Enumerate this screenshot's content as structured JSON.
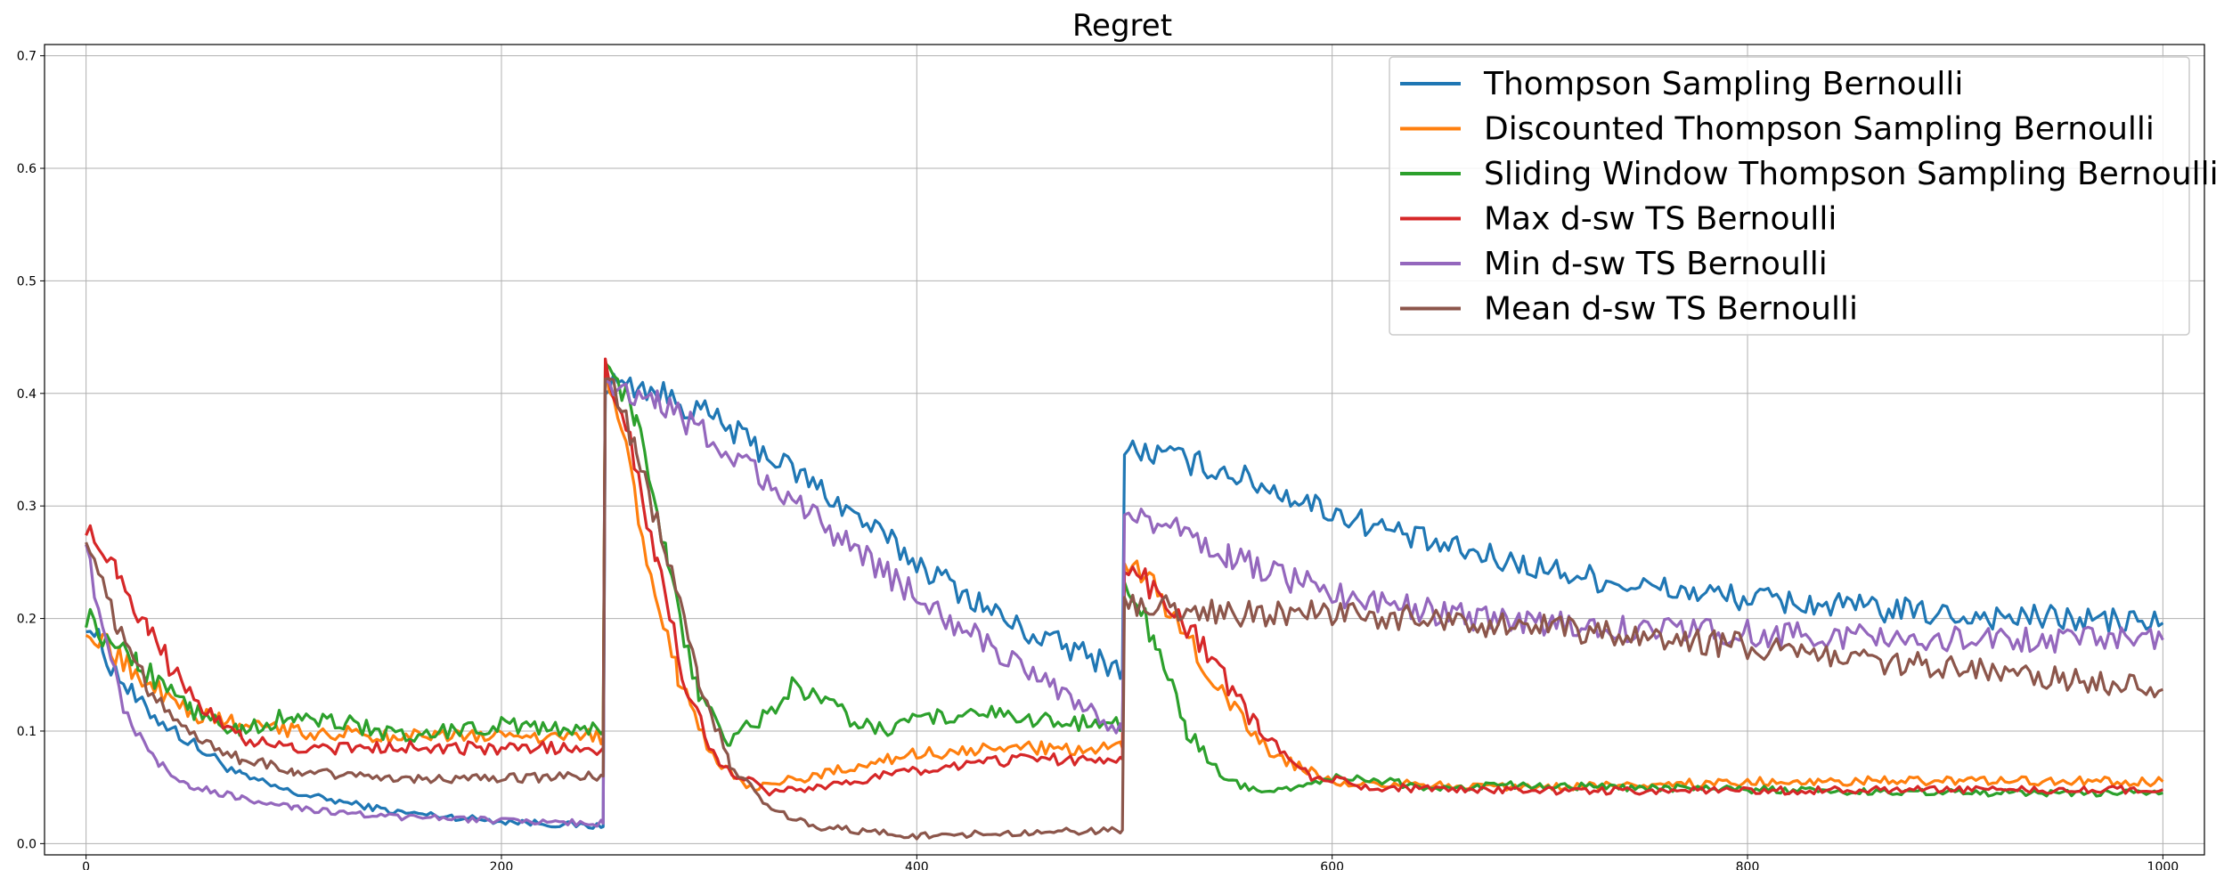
{
  "chart_data": {
    "type": "line",
    "title": "Regret",
    "xlabel": "",
    "ylabel": "",
    "xlim": [
      -20,
      1020
    ],
    "ylim": [
      -0.01,
      0.71
    ],
    "xticks": [
      0,
      200,
      400,
      600,
      800,
      1000
    ],
    "yticks": [
      0.0,
      0.1,
      0.2,
      0.3,
      0.4,
      0.5,
      0.6,
      0.7
    ],
    "grid": true,
    "legend_position": "upper right",
    "series": [
      {
        "name": "Thompson Sampling Bernoulli",
        "color": "#1f77b4",
        "points": [
          [
            0,
            0.2
          ],
          [
            10,
            0.165
          ],
          [
            25,
            0.125
          ],
          [
            50,
            0.09
          ],
          [
            75,
            0.06
          ],
          [
            100,
            0.045
          ],
          [
            150,
            0.028
          ],
          [
            200,
            0.02
          ],
          [
            249,
            0.015
          ],
          [
            250,
            0.41
          ],
          [
            270,
            0.405
          ],
          [
            300,
            0.38
          ],
          [
            350,
            0.32
          ],
          [
            400,
            0.25
          ],
          [
            450,
            0.19
          ],
          [
            499,
            0.155
          ],
          [
            500,
            0.35
          ],
          [
            520,
            0.345
          ],
          [
            550,
            0.33
          ],
          [
            600,
            0.295
          ],
          [
            650,
            0.265
          ],
          [
            700,
            0.245
          ],
          [
            750,
            0.228
          ],
          [
            800,
            0.218
          ],
          [
            850,
            0.21
          ],
          [
            900,
            0.203
          ],
          [
            950,
            0.2
          ],
          [
            1000,
            0.196
          ]
        ]
      },
      {
        "name": "Discounted Thompson Sampling Bernoulli",
        "color": "#ff7f0e",
        "points": [
          [
            0,
            0.195
          ],
          [
            25,
            0.15
          ],
          [
            50,
            0.115
          ],
          [
            75,
            0.105
          ],
          [
            100,
            0.1
          ],
          [
            150,
            0.095
          ],
          [
            200,
            0.095
          ],
          [
            249,
            0.095
          ],
          [
            250,
            0.42
          ],
          [
            260,
            0.35
          ],
          [
            270,
            0.25
          ],
          [
            285,
            0.15
          ],
          [
            300,
            0.08
          ],
          [
            320,
            0.05
          ],
          [
            350,
            0.06
          ],
          [
            400,
            0.08
          ],
          [
            450,
            0.085
          ],
          [
            499,
            0.085
          ],
          [
            500,
            0.255
          ],
          [
            510,
            0.24
          ],
          [
            525,
            0.2
          ],
          [
            545,
            0.14
          ],
          [
            570,
            0.08
          ],
          [
            600,
            0.055
          ],
          [
            700,
            0.05
          ],
          [
            800,
            0.055
          ],
          [
            900,
            0.056
          ],
          [
            1000,
            0.055
          ]
        ]
      },
      {
        "name": "Sliding Window Thompson Sampling Bernoulli",
        "color": "#2ca02c",
        "points": [
          [
            0,
            0.2
          ],
          [
            25,
            0.16
          ],
          [
            50,
            0.12
          ],
          [
            75,
            0.1
          ],
          [
            100,
            0.115
          ],
          [
            125,
            0.108
          ],
          [
            150,
            0.095
          ],
          [
            200,
            0.105
          ],
          [
            249,
            0.1
          ],
          [
            250,
            0.43
          ],
          [
            265,
            0.38
          ],
          [
            280,
            0.25
          ],
          [
            295,
            0.13
          ],
          [
            310,
            0.09
          ],
          [
            330,
            0.12
          ],
          [
            340,
            0.14
          ],
          [
            360,
            0.12
          ],
          [
            380,
            0.1
          ],
          [
            400,
            0.11
          ],
          [
            430,
            0.12
          ],
          [
            450,
            0.11
          ],
          [
            499,
            0.105
          ],
          [
            500,
            0.235
          ],
          [
            515,
            0.18
          ],
          [
            530,
            0.1
          ],
          [
            550,
            0.055
          ],
          [
            570,
            0.045
          ],
          [
            600,
            0.06
          ],
          [
            650,
            0.05
          ],
          [
            700,
            0.052
          ],
          [
            800,
            0.048
          ],
          [
            900,
            0.045
          ],
          [
            1000,
            0.045
          ]
        ]
      },
      {
        "name": "Max d-sw TS Bernoulli",
        "color": "#d62728",
        "points": [
          [
            0,
            0.28
          ],
          [
            15,
            0.245
          ],
          [
            30,
            0.19
          ],
          [
            50,
            0.13
          ],
          [
            75,
            0.095
          ],
          [
            100,
            0.085
          ],
          [
            150,
            0.085
          ],
          [
            200,
            0.085
          ],
          [
            249,
            0.085
          ],
          [
            250,
            0.42
          ],
          [
            260,
            0.37
          ],
          [
            275,
            0.25
          ],
          [
            290,
            0.13
          ],
          [
            305,
            0.07
          ],
          [
            330,
            0.045
          ],
          [
            350,
            0.05
          ],
          [
            400,
            0.065
          ],
          [
            450,
            0.075
          ],
          [
            499,
            0.075
          ],
          [
            500,
            0.245
          ],
          [
            520,
            0.22
          ],
          [
            540,
            0.17
          ],
          [
            565,
            0.1
          ],
          [
            590,
            0.06
          ],
          [
            620,
            0.05
          ],
          [
            700,
            0.047
          ],
          [
            800,
            0.047
          ],
          [
            900,
            0.048
          ],
          [
            1000,
            0.048
          ]
        ]
      },
      {
        "name": "Min d-sw TS Bernoulli",
        "color": "#9467bd",
        "points": [
          [
            0,
            0.27
          ],
          [
            10,
            0.17
          ],
          [
            20,
            0.11
          ],
          [
            35,
            0.07
          ],
          [
            50,
            0.052
          ],
          [
            75,
            0.04
          ],
          [
            100,
            0.032
          ],
          [
            150,
            0.024
          ],
          [
            200,
            0.02
          ],
          [
            249,
            0.018
          ],
          [
            250,
            0.41
          ],
          [
            275,
            0.395
          ],
          [
            300,
            0.36
          ],
          [
            350,
            0.29
          ],
          [
            400,
            0.22
          ],
          [
            450,
            0.155
          ],
          [
            499,
            0.1
          ],
          [
            500,
            0.295
          ],
          [
            525,
            0.28
          ],
          [
            550,
            0.255
          ],
          [
            600,
            0.222
          ],
          [
            650,
            0.205
          ],
          [
            700,
            0.195
          ],
          [
            750,
            0.19
          ],
          [
            800,
            0.187
          ],
          [
            900,
            0.183
          ],
          [
            1000,
            0.181
          ]
        ]
      },
      {
        "name": "Mean d-sw TS Bernoulli",
        "color": "#8c564b",
        "points": [
          [
            0,
            0.27
          ],
          [
            15,
            0.19
          ],
          [
            30,
            0.14
          ],
          [
            50,
            0.1
          ],
          [
            75,
            0.075
          ],
          [
            100,
            0.065
          ],
          [
            150,
            0.058
          ],
          [
            200,
            0.058
          ],
          [
            249,
            0.06
          ],
          [
            250,
            0.42
          ],
          [
            265,
            0.35
          ],
          [
            280,
            0.25
          ],
          [
            295,
            0.15
          ],
          [
            310,
            0.07
          ],
          [
            330,
            0.03
          ],
          [
            350,
            0.015
          ],
          [
            400,
            0.007
          ],
          [
            450,
            0.01
          ],
          [
            499,
            0.012
          ],
          [
            500,
            0.215
          ],
          [
            550,
            0.205
          ],
          [
            600,
            0.205
          ],
          [
            650,
            0.198
          ],
          [
            700,
            0.192
          ],
          [
            750,
            0.185
          ],
          [
            800,
            0.175
          ],
          [
            850,
            0.163
          ],
          [
            900,
            0.157
          ],
          [
            950,
            0.147
          ],
          [
            1000,
            0.137
          ]
        ]
      }
    ]
  }
}
